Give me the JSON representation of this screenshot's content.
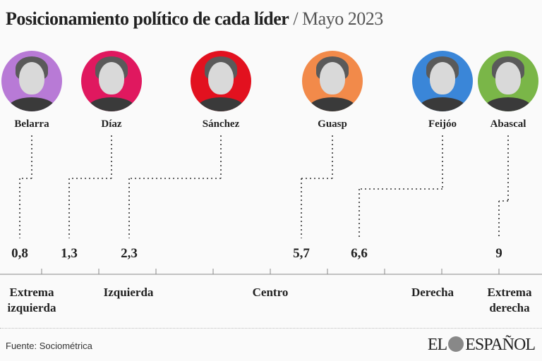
{
  "title": {
    "main": "Posicionamiento político de cada líder",
    "separator": " / ",
    "sub": "Mayo 2023"
  },
  "chart_data": {
    "type": "scatter",
    "title": "Posicionamiento político de cada líder / Mayo 2023",
    "xlim": [
      0,
      10
    ],
    "axis_categories": [
      "Extrema izquierda",
      "Izquierda",
      "Centro",
      "Derecha",
      "Extrema derecha"
    ],
    "leaders": [
      {
        "name": "Belarra",
        "value": 0.8,
        "label": "0,8",
        "color": "#b87ad6"
      },
      {
        "name": "Díaz",
        "value": 1.3,
        "label": "1,3",
        "color": "#e0185f"
      },
      {
        "name": "Sánchez",
        "value": 2.3,
        "label": "2,3",
        "color": "#e2111f"
      },
      {
        "name": "Guasp",
        "value": 5.7,
        "label": "5,7",
        "color": "#f28a4a"
      },
      {
        "name": "Feijóo",
        "value": 6.6,
        "label": "6,6",
        "color": "#3a86d8"
      },
      {
        "name": "Abascal",
        "value": 9,
        "label": "9",
        "color": "#7ab648"
      }
    ]
  },
  "footer": {
    "source": "Fuente: Sociométrica",
    "logo": "EL ESPAÑOL"
  }
}
